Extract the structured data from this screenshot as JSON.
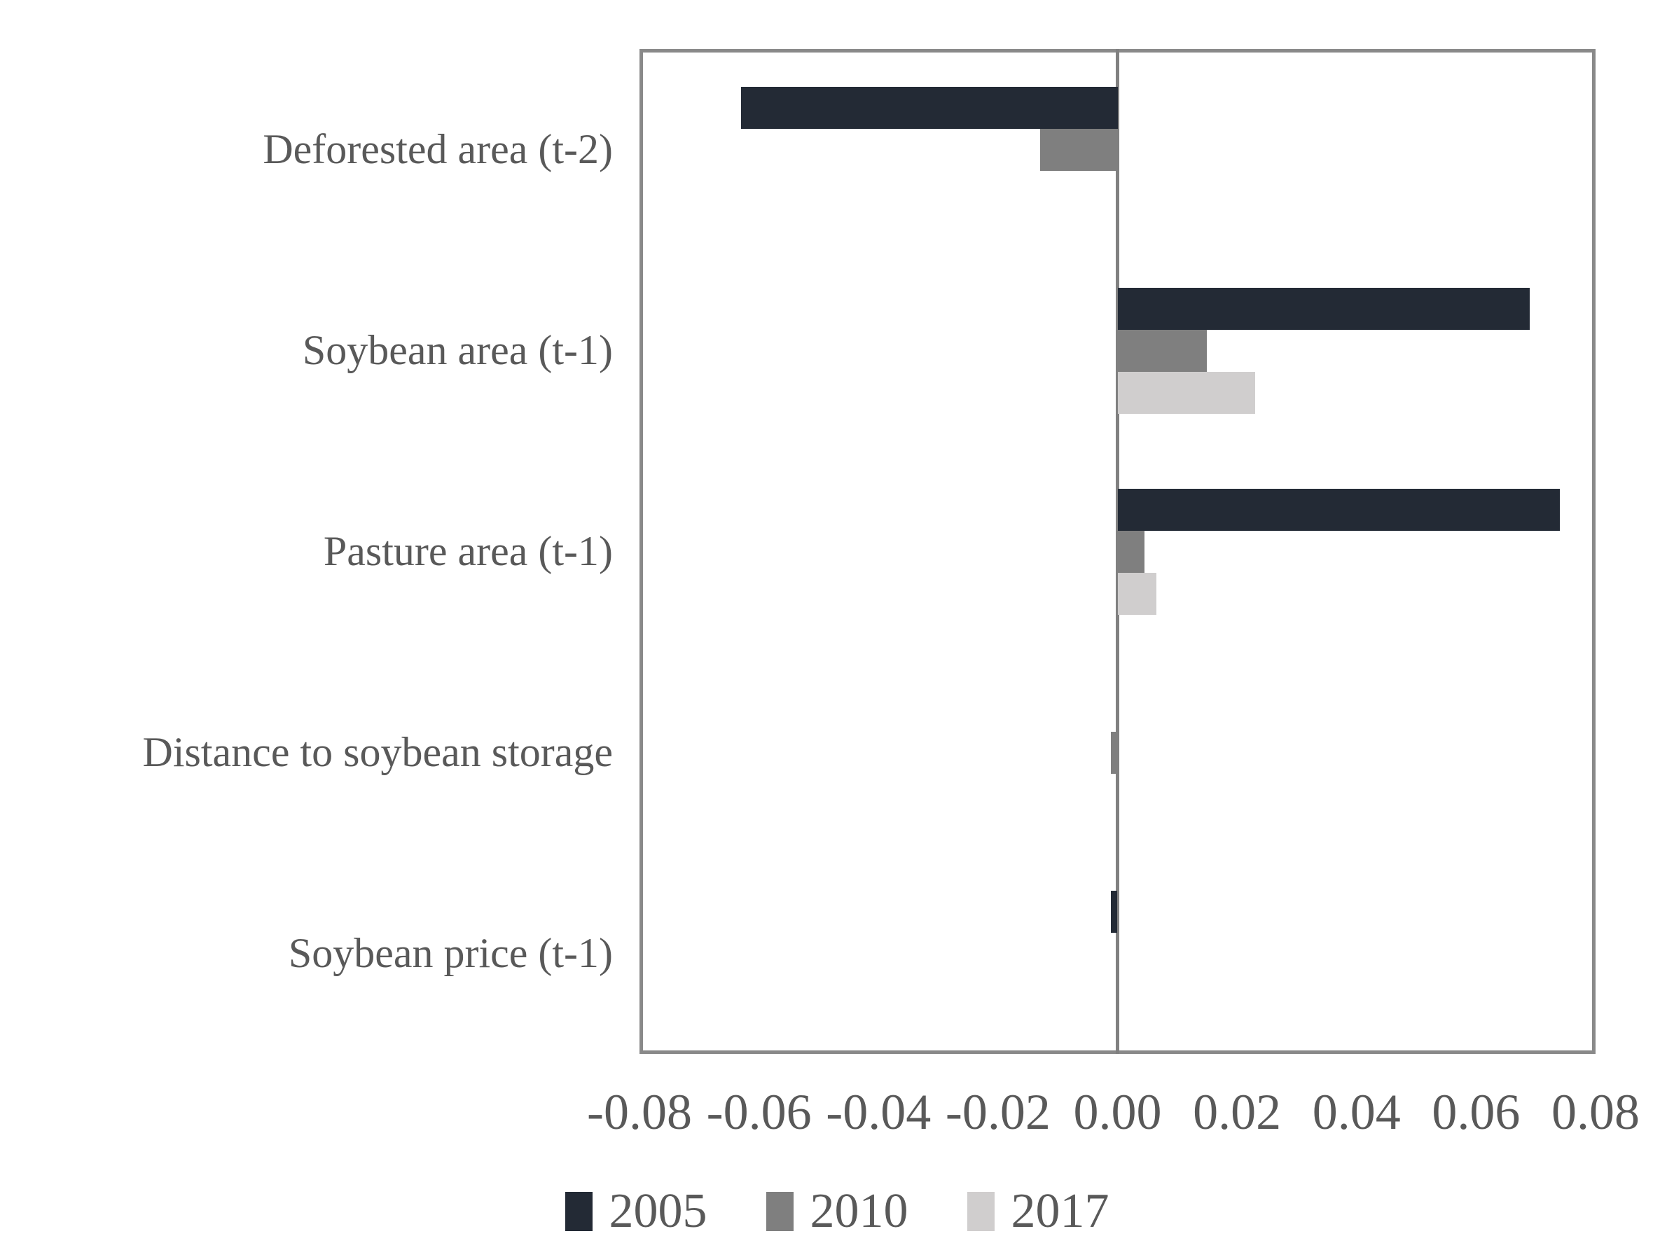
{
  "chart_data": {
    "type": "bar",
    "orientation": "horizontal",
    "title": "",
    "xlabel": "",
    "ylabel": "",
    "grid": false,
    "categories": [
      "Deforested area (t-2)",
      "Soybean area (t-1)",
      "Pasture area (t-1)",
      "Distance to soybean storage",
      "Soybean price (t-1)"
    ],
    "series": [
      {
        "name": "2005",
        "color": "#232A35",
        "values": [
          -0.063,
          0.069,
          0.074,
          0.0,
          -0.0011
        ]
      },
      {
        "name": "2010",
        "color": "#7F7F7F",
        "values": [
          -0.013,
          0.015,
          0.0045,
          -0.0011,
          0.0
        ]
      },
      {
        "name": "2017",
        "color": "#D0CECE",
        "values": [
          0.0,
          0.023,
          0.0065,
          0.0,
          0.0
        ]
      }
    ],
    "xlim": [
      -0.08,
      0.08
    ],
    "x_ticks": [
      "-0.08",
      "-0.06",
      "-0.04",
      "-0.02",
      "0.00",
      "0.02",
      "0.04",
      "0.06",
      "0.08"
    ],
    "legend_position": "bottom",
    "legend_labels": [
      "2005",
      "2010",
      "2017"
    ]
  },
  "colors": {
    "background": "#FFFFFF",
    "plot_border": "#898989",
    "zero_line": "#808080",
    "text": "#595959"
  }
}
